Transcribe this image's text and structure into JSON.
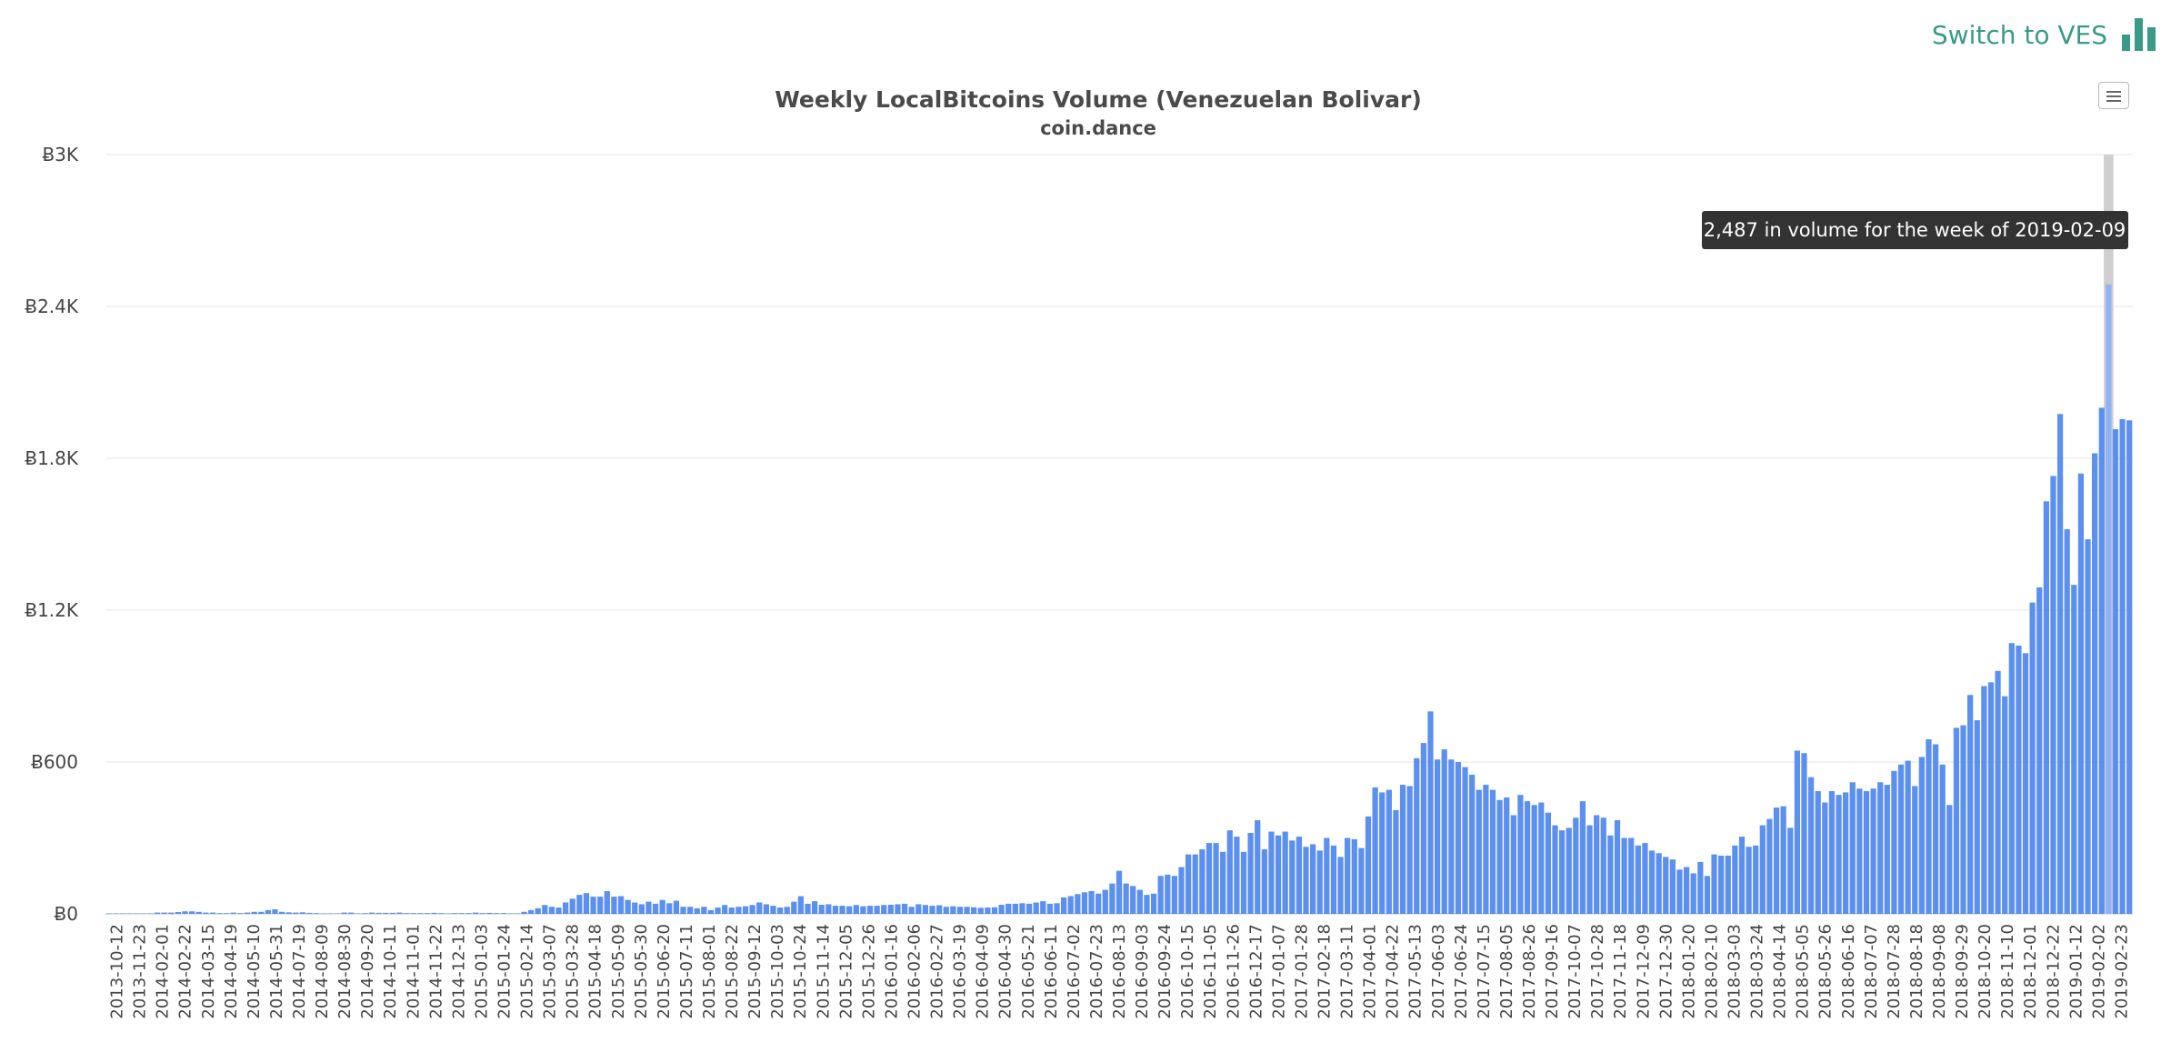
{
  "header": {
    "switch_label": "Switch to VES"
  },
  "icons": {
    "switch": "bar-chart-icon",
    "menu": "hamburger-menu-icon"
  },
  "colors": {
    "bar": "#5b8ff0",
    "bar_hover": "#8fb2f5",
    "accent": "#3a9a88",
    "tooltip_bg": "#333333"
  },
  "tooltip": {
    "text": "2,487 in volume for the week of 2019-02-09"
  },
  "chart_data": {
    "type": "bar",
    "title": "Weekly LocalBitcoins Volume (Venezuelan Bolivar)",
    "subtitle": "coin.dance",
    "ylim": [
      0,
      3000
    ],
    "yticks": [
      "Ƀ0",
      "Ƀ600",
      "Ƀ1.2K",
      "Ƀ1.8K",
      "Ƀ2.4K",
      "Ƀ3K"
    ],
    "x_labels": [
      "2013-10-12",
      "2013-11-23",
      "2014-02-01",
      "2014-02-22",
      "2014-03-15",
      "2014-04-19",
      "2014-05-10",
      "2014-05-31",
      "2014-07-19",
      "2014-08-09",
      "2014-08-30",
      "2014-09-20",
      "2014-10-11",
      "2014-11-01",
      "2014-11-22",
      "2014-12-13",
      "2015-01-03",
      "2015-01-24",
      "2015-02-14",
      "2015-03-07",
      "2015-03-28",
      "2015-04-18",
      "2015-05-09",
      "2015-05-30",
      "2015-06-20",
      "2015-07-11",
      "2015-08-01",
      "2015-08-22",
      "2015-09-12",
      "2015-10-03",
      "2015-10-24",
      "2015-11-14",
      "2015-12-05",
      "2015-12-26",
      "2016-01-16",
      "2016-02-06",
      "2016-02-27",
      "2016-03-19",
      "2016-04-09",
      "2016-04-30",
      "2016-05-21",
      "2016-06-11",
      "2016-07-02",
      "2016-07-23",
      "2016-08-13",
      "2016-09-03",
      "2016-09-24",
      "2016-10-15",
      "2016-11-05",
      "2016-11-26",
      "2016-12-17",
      "2017-01-07",
      "2017-01-28",
      "2017-02-18",
      "2017-03-11",
      "2017-04-01",
      "2017-04-22",
      "2017-05-13",
      "2017-06-03",
      "2017-06-24",
      "2017-07-15",
      "2017-08-05",
      "2017-08-26",
      "2017-09-16",
      "2017-10-07",
      "2017-10-28",
      "2017-11-18",
      "2017-12-09",
      "2017-12-30",
      "2018-01-20",
      "2018-02-10",
      "2018-03-03",
      "2018-03-24",
      "2018-04-14",
      "2018-05-05",
      "2018-05-26",
      "2018-06-16",
      "2018-07-07",
      "2018-07-28",
      "2018-08-18",
      "2018-09-08",
      "2018-09-29",
      "2018-10-20",
      "2018-11-10",
      "2018-12-01",
      "2018-12-22",
      "2019-01-12",
      "2019-02-02",
      "2019-02-23"
    ],
    "values": [
      2,
      2,
      2,
      2,
      2,
      2,
      2,
      5,
      5,
      5,
      7,
      10,
      10,
      8,
      5,
      5,
      3,
      3,
      5,
      3,
      5,
      8,
      8,
      15,
      18,
      8,
      6,
      5,
      6,
      4,
      3,
      2,
      2,
      2,
      5,
      5,
      2,
      3,
      5,
      4,
      4,
      4,
      5,
      3,
      3,
      3,
      3,
      4,
      3,
      2,
      3,
      3,
      3,
      5,
      3,
      4,
      3,
      3,
      2,
      2,
      8,
      15,
      22,
      35,
      28,
      25,
      45,
      60,
      75,
      82,
      68,
      68,
      90,
      68,
      70,
      55,
      45,
      38,
      48,
      40,
      55,
      42,
      52,
      28,
      28,
      22,
      28,
      15,
      25,
      35,
      25,
      28,
      30,
      35,
      45,
      38,
      32,
      25,
      28,
      48,
      70,
      40,
      50,
      36,
      38,
      32,
      32,
      30,
      35,
      30,
      32,
      32,
      35,
      36,
      38,
      40,
      28,
      38,
      35,
      32,
      34,
      28,
      30,
      28,
      28,
      26,
      24,
      25,
      26,
      36,
      40,
      40,
      42,
      40,
      45,
      50,
      40,
      42,
      65,
      70,
      78,
      85,
      90,
      80,
      95,
      120,
      170,
      120,
      110,
      95,
      75,
      80,
      150,
      155,
      150,
      185,
      235,
      235,
      255,
      280,
      280,
      245,
      330,
      305,
      245,
      320,
      370,
      255,
      325,
      310,
      325,
      290,
      305,
      265,
      275,
      250,
      300,
      270,
      225,
      300,
      295,
      260,
      385,
      500,
      480,
      490,
      410,
      510,
      505,
      615,
      675,
      800,
      610,
      650,
      610,
      600,
      580,
      550,
      490,
      510,
      490,
      450,
      460,
      390,
      470,
      445,
      430,
      440,
      400,
      350,
      330,
      340,
      380,
      445,
      350,
      390,
      380,
      310,
      370,
      300,
      300,
      270,
      280,
      250,
      240,
      225,
      215,
      175,
      185,
      160,
      205,
      150,
      235,
      230,
      230,
      270,
      305,
      265,
      270,
      350,
      375,
      420,
      425,
      340,
      645,
      635,
      540,
      485,
      440,
      485,
      470,
      480,
      520,
      495,
      485,
      495,
      520,
      510,
      565,
      590,
      605,
      505,
      620,
      690,
      670,
      590,
      430,
      735,
      745,
      865,
      765,
      900,
      915,
      960,
      860,
      1070,
      1060,
      1030,
      1230,
      1290,
      1630,
      1730,
      1975,
      1520,
      1300,
      1740,
      1480,
      1820,
      2000,
      2487,
      1915,
      1955,
      1950
    ]
  }
}
